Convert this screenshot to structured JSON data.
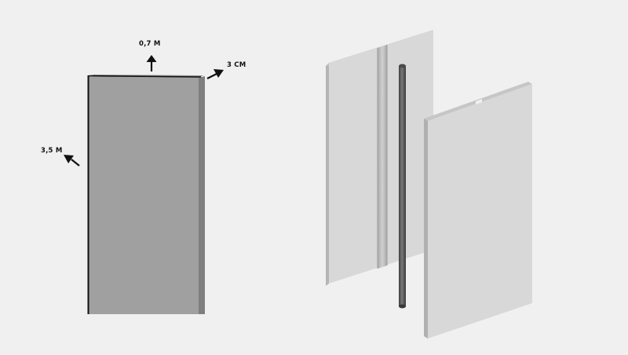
{
  "colors": {
    "background": "#f0f0f0",
    "panel_face": "#a0a0a0",
    "panel_side": "#808080",
    "panel_edge": "#111111",
    "white_panel_face": "#d8d8d8",
    "white_panel_side": "#b8b8b8",
    "white_panel_top": "#c8c8c8",
    "groove": "#bdbdbd",
    "rod": "#5a5a5a",
    "arrow": "#111111"
  },
  "dimensions": {
    "width_label": "0,7 M",
    "depth_label": "3 CM",
    "height_label": "3,5 M"
  },
  "icons": {
    "dimension_arrows": "arrow-icon"
  }
}
